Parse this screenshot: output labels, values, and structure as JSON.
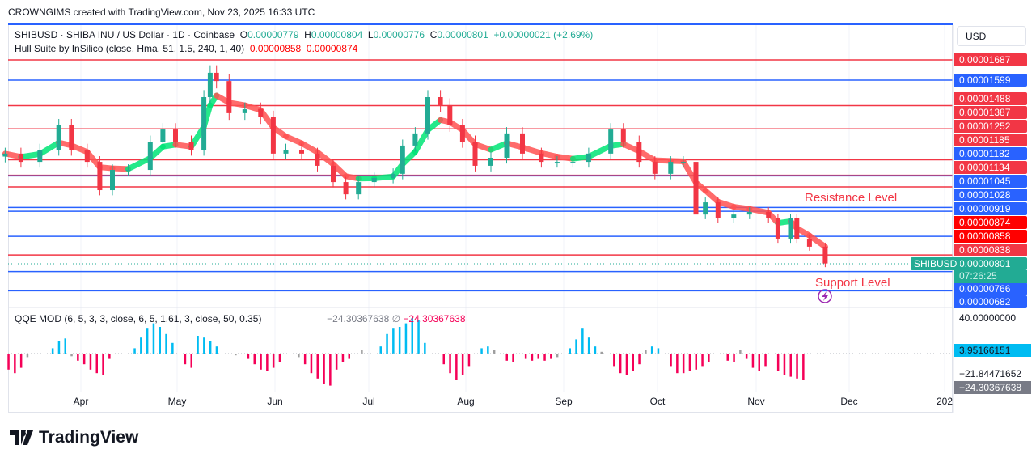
{
  "credit": "CROWNGIMS created with TradingView.com, Nov 23, 2025 16:33 UTC",
  "legend": {
    "symbol": "SHIBUSD · SHIBA INU / US Dollar · 1D · Coinbase",
    "o_label": "O",
    "o": "0.00000779",
    "h_label": "H",
    "h": "0.00000804",
    "l_label": "L",
    "l": "0.00000776",
    "c_label": "C",
    "c": "0.00000801",
    "change": "+0.00000021 (+2.69%)",
    "indicator": "Hull Suite by InSilico (close, Hma, 51, 1.5, 240, 1, 40)",
    "ind_v1": "0.00000858",
    "ind_v2": "0.00000874"
  },
  "currency": "USD",
  "colors": {
    "red_level": "#f23645",
    "blue_level": "#2962ff",
    "hull_red": "#ff0000",
    "up": "#22ab94",
    "down": "#f23645",
    "hull_up": "#00e676",
    "hull_down": "#ff5252",
    "qqe_up": "#00bcf2",
    "qqe_down": "#f50057",
    "qqe_neutral": "#9e9e9e"
  },
  "price_labels": [
    {
      "value": "0.00001687",
      "color": "#f23645"
    },
    {
      "value": "0.00001599",
      "color": "#2962ff"
    },
    {
      "value": "0.00001488",
      "color": "#f23645"
    },
    {
      "value": "0.00001387",
      "color": "#f23645"
    },
    {
      "value": "0.00001252",
      "color": "#f23645"
    },
    {
      "value": "0.00001185",
      "color": "#f23645"
    },
    {
      "value": "0.00001182",
      "color": "#2962ff"
    },
    {
      "value": "0.00001134",
      "color": "#f23645"
    },
    {
      "value": "0.00001045",
      "color": "#2962ff"
    },
    {
      "value": "0.00001028",
      "color": "#2962ff"
    },
    {
      "value": "0.00000919",
      "color": "#2962ff"
    },
    {
      "value": "0.00000874",
      "color": "#ff0000"
    },
    {
      "value": "0.00000858",
      "color": "#ff0000"
    },
    {
      "value": "0.00000838",
      "color": "#f23645"
    },
    {
      "value": "0.00000801",
      "color": "#22ab94"
    },
    {
      "value": "0.00000766",
      "color": "#2962ff"
    },
    {
      "value": "0.00000682",
      "color": "#2962ff"
    }
  ],
  "current": {
    "symbol_tag": "SHIBUSD",
    "price": "0.00000801",
    "countdown": "07:26:25"
  },
  "annotations": {
    "resistance": "Resistance Level",
    "support": "Support Level"
  },
  "months": [
    "Apr",
    "May",
    "Jun",
    "Jul",
    "Aug",
    "Sep",
    "Oct",
    "Nov",
    "Dec",
    "202"
  ],
  "qqe": {
    "legend": "QQE MOD (6, 5, 3, 3, close, 6, 5, 1.61, 3, close, 50, 0.35)",
    "v1": "−24.30367638",
    "v2": "−24.30367638",
    "axis_top": "40.00000000",
    "label_line": "3.95166151",
    "label_mid": "−21.84471652",
    "label_val": "−24.30367638"
  },
  "brand": "TradingView",
  "chart_data": [
    {
      "type": "candlestick",
      "title": "SHIBUSD · SHIBA INU / US Dollar · 1D · Coinbase",
      "ylim": [
        6.6e-06,
        1.75e-05
      ],
      "levels": [
        {
          "price": 1.687e-05,
          "color": "#f23645"
        },
        {
          "price": 1.599e-05,
          "color": "#2962ff"
        },
        {
          "price": 1.488e-05,
          "color": "#f23645"
        },
        {
          "price": 1.387e-05,
          "color": "#f23645"
        },
        {
          "price": 1.252e-05,
          "color": "#f23645"
        },
        {
          "price": 1.185e-05,
          "color": "#f23645"
        },
        {
          "price": 1.182e-05,
          "color": "#2962ff"
        },
        {
          "price": 1.134e-05,
          "color": "#f23645"
        },
        {
          "price": 1.045e-05,
          "color": "#2962ff"
        },
        {
          "price": 1.028e-05,
          "color": "#2962ff"
        },
        {
          "price": 9.19e-06,
          "color": "#2962ff"
        },
        {
          "price": 8.38e-06,
          "color": "#f23645"
        },
        {
          "price": 7.66e-06,
          "color": "#2962ff"
        },
        {
          "price": 6.82e-06,
          "color": "#2962ff"
        }
      ],
      "dates": [
        "2025-03-08",
        "2025-03-13",
        "2025-03-19",
        "2025-03-25",
        "2025-03-29",
        "2025-04-03",
        "2025-04-07",
        "2025-04-11",
        "2025-04-16",
        "2025-04-23",
        "2025-04-27",
        "2025-05-01",
        "2025-05-06",
        "2025-05-10",
        "2025-05-12",
        "2025-05-14",
        "2025-05-18",
        "2025-05-23",
        "2025-05-28",
        "2025-06-01",
        "2025-06-05",
        "2025-06-10",
        "2025-06-15",
        "2025-06-20",
        "2025-06-24",
        "2025-06-28",
        "2025-07-03",
        "2025-07-09",
        "2025-07-12",
        "2025-07-16",
        "2025-07-20",
        "2025-07-24",
        "2025-07-27",
        "2025-07-31",
        "2025-08-04",
        "2025-08-09",
        "2025-08-14",
        "2025-08-19",
        "2025-08-25",
        "2025-08-30",
        "2025-09-04",
        "2025-09-09",
        "2025-09-16",
        "2025-09-20",
        "2025-09-25",
        "2025-09-30",
        "2025-10-05",
        "2025-10-09",
        "2025-10-13",
        "2025-10-16",
        "2025-10-20",
        "2025-10-25",
        "2025-10-30",
        "2025-11-05",
        "2025-11-08",
        "2025-11-12",
        "2025-11-14",
        "2025-11-18",
        "2025-11-23"
      ],
      "close": [
        1.279e-05,
        1.243e-05,
        1.296e-05,
        1.402e-05,
        1.296e-05,
        1.243e-05,
        1.12e-05,
        1.208e-05,
        1.208e-05,
        1.331e-05,
        1.384e-05,
        1.331e-05,
        1.296e-05,
        1.525e-05,
        1.631e-05,
        1.595e-05,
        1.455e-05,
        1.472e-05,
        1.437e-05,
        1.279e-05,
        1.296e-05,
        1.279e-05,
        1.226e-05,
        1.155e-05,
        1.102e-05,
        1.155e-05,
        1.173e-05,
        1.191e-05,
        1.314e-05,
        1.367e-05,
        1.525e-05,
        1.49e-05,
        1.402e-05,
        1.331e-05,
        1.226e-05,
        1.261e-05,
        1.367e-05,
        1.279e-05,
        1.243e-05,
        1.243e-05,
        1.243e-05,
        1.279e-05,
        1.384e-05,
        1.331e-05,
        1.243e-05,
        1.191e-05,
        1.243e-05,
        1.243e-05,
        1.014e-05,
        1.067e-05,
        9.97e-06,
        1.014e-05,
        1.025e-05,
        9.97e-06,
        9.09e-06,
        9.97e-06,
        9.09e-06,
        8.74e-06,
        8.01e-06
      ]
    },
    {
      "type": "bar",
      "title": "QQE MOD (6, 5, 3, 3, close, 6, 5, 1.61, 3, close, 50, 0.35)",
      "start_date": "2025-03-09",
      "step_days": 2,
      "ylim": [
        -40,
        40
      ],
      "values": [
        -18,
        -22,
        -16,
        -4,
        0,
        0,
        0,
        6,
        14,
        17,
        -3,
        -8,
        -12,
        -18,
        -22,
        -24,
        -6,
        0,
        0,
        0,
        6,
        18,
        28,
        34,
        30,
        22,
        12,
        0,
        -12,
        -16,
        20,
        18,
        14,
        8,
        0,
        0,
        -2,
        0,
        -6,
        -12,
        -18,
        -20,
        -16,
        -10,
        0,
        0,
        -4,
        -12,
        -22,
        -28,
        -34,
        -36,
        -18,
        -10,
        -6,
        0,
        4,
        0,
        0,
        8,
        22,
        28,
        30,
        34,
        40,
        38,
        12,
        0,
        0,
        -12,
        -22,
        -30,
        -24,
        -14,
        0,
        6,
        8,
        4,
        0,
        -8,
        -10,
        0,
        -6,
        -8,
        -6,
        -8,
        -6,
        -4,
        0,
        6,
        16,
        28,
        18,
        8,
        2,
        0,
        -14,
        -22,
        -24,
        -20,
        -12,
        4,
        8,
        6,
        0,
        -14,
        -22,
        -22,
        -20,
        -18,
        -14,
        -10,
        0,
        0,
        -8,
        -10,
        4,
        -6,
        -16,
        -20,
        -14,
        0,
        -20,
        -24,
        -26,
        -28,
        -30
      ]
    }
  ]
}
